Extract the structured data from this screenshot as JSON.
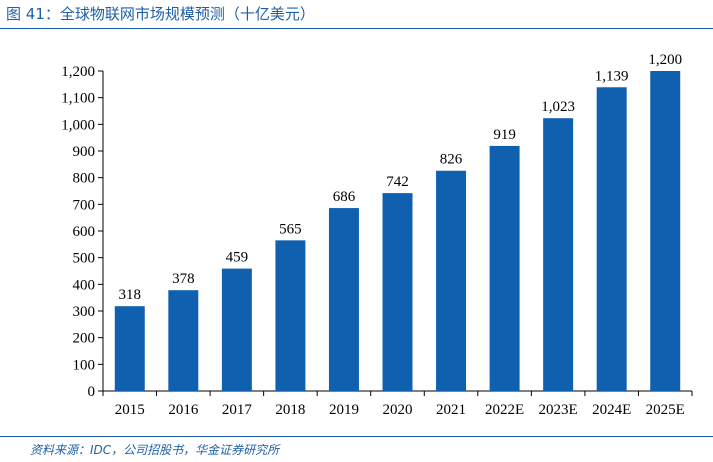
{
  "header": {
    "title": "图 41：全球物联网市场规模预测（十亿美元）"
  },
  "footer": {
    "source": "资料来源：IDC，公司招股书，华金证券研究所"
  },
  "colors": {
    "bar": "#1060b0",
    "accent": "#1f5fa8"
  },
  "chart_data": {
    "type": "bar",
    "title": "",
    "xlabel": "",
    "ylabel": "",
    "categories": [
      "2015",
      "2016",
      "2017",
      "2018",
      "2019",
      "2020",
      "2021",
      "2022E",
      "2023E",
      "2024E",
      "2025E"
    ],
    "values": [
      318,
      378,
      459,
      565,
      686,
      742,
      826,
      919,
      1023,
      1139,
      1200
    ],
    "value_labels": [
      "318",
      "378",
      "459",
      "565",
      "686",
      "742",
      "826",
      "919",
      "1,023",
      "1,139",
      "1,200"
    ],
    "ylim": [
      0,
      1200
    ],
    "yticks": [
      0,
      100,
      200,
      300,
      400,
      500,
      600,
      700,
      800,
      900,
      1000,
      1100,
      1200
    ],
    "ytick_labels": [
      "0",
      "100",
      "200",
      "300",
      "400",
      "500",
      "600",
      "700",
      "800",
      "900",
      "1,000",
      "1,100",
      "1,200"
    ],
    "grid": false,
    "legend": "none"
  }
}
